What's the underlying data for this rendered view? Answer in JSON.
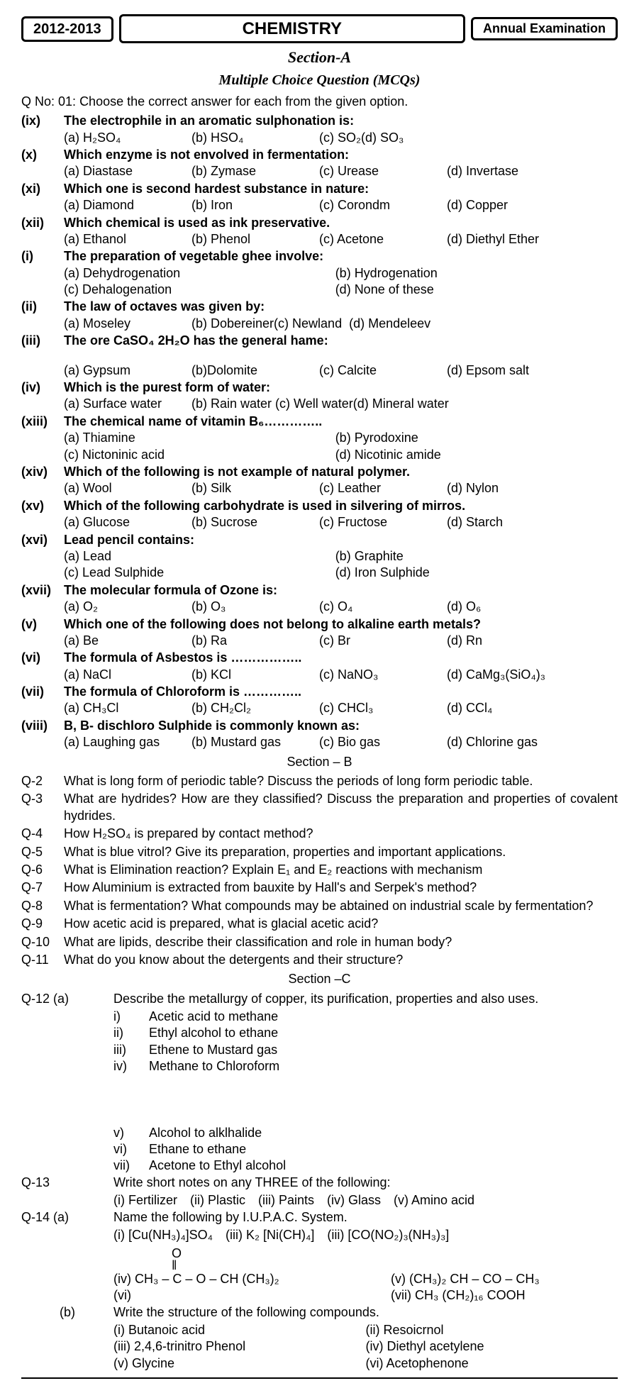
{
  "header": {
    "year": "2012-2013",
    "subject": "CHEMISTRY",
    "exam": "Annual Examination"
  },
  "sectionA": {
    "title": "Section-A",
    "subtitle": "Multiple Choice Question (MCQs)",
    "instruction_label": "Q No: 01:",
    "instruction": "Choose the correct answer for each from the given option."
  },
  "mcq": [
    {
      "num": "(ix)",
      "q": "The electrophile in an aromatic sulphonation is:",
      "opts": [
        "(a) H₂SO₄",
        "(b) HSO₄",
        "(c) SO₂(d) SO₃"
      ]
    },
    {
      "num": "(x)",
      "q": "Which enzyme is not envolved in fermentation:",
      "opts": [
        "(a) Diastase",
        "(b) Zymase",
        "(c) Urease",
        "(d) Invertase"
      ]
    },
    {
      "num": "(xi)",
      "q": "Which one is second hardest substance in nature:",
      "opts": [
        "(a) Diamond",
        "(b) Iron",
        "(c) Corondm",
        "(d) Copper"
      ]
    },
    {
      "num": "(xii)",
      "q": "Which chemical is used as ink preservative.",
      "opts": [
        "(a) Ethanol",
        "(b) Phenol",
        "(c) Acetone",
        "(d) Diethyl Ether"
      ]
    },
    {
      "num": "(i)",
      "q": "The preparation of vegetable ghee involve:",
      "opts2": [
        "(a) Dehydrogenation",
        "(b) Hydrogenation",
        "(c) Dehalogenation",
        "(d) None of these"
      ]
    },
    {
      "num": "(ii)",
      "q": "The law of octaves was given by:",
      "opts": [
        "(a) Moseley",
        "(b) Dobereiner(c) Newland",
        "(d) Mendeleev"
      ]
    },
    {
      "num": "(iii)",
      "q": "The ore CaSO₄ 2H₂O has the general hame:",
      "gap": true,
      "opts": [
        "(a) Gypsum",
        "(b)Dolomite",
        "(c) Calcite",
        "(d) Epsom salt"
      ]
    },
    {
      "num": "(iv)",
      "q": "Which is the purest form of water:",
      "opts": [
        "(a) Surface water",
        "(b) Rain water (c) Well water(d) Mineral water"
      ]
    },
    {
      "num": "(xiii)",
      "q": "The chemical name of vitamin B₆…………..",
      "opts2": [
        "(a) Thiamine",
        "(b) Pyrodoxine",
        "(c) Nictoninic acid",
        "(d) Nicotinic amide"
      ]
    },
    {
      "num": "(xiv)",
      "q": "Which of the following is not example of natural polymer.",
      "opts": [
        "(a) Wool",
        "(b) Silk",
        "(c) Leather",
        "(d) Nylon"
      ]
    },
    {
      "num": "(xv)",
      "q": "Which of the following carbohydrate is used in silvering of mirros.",
      "opts": [
        "(a) Glucose",
        "(b) Sucrose",
        "(c) Fructose",
        "(d) Starch"
      ]
    },
    {
      "num": "(xvi)",
      "q": "Lead pencil contains:",
      "opts2": [
        "(a) Lead",
        "(b) Graphite",
        "(c) Lead Sulphide",
        "(d) Iron Sulphide"
      ]
    },
    {
      "num": "(xvii)",
      "q": "The molecular formula of Ozone is:",
      "opts": [
        "(a) O₂",
        "(b) O₃",
        "(c) O₄",
        "(d) O₆"
      ]
    },
    {
      "num": "(v)",
      "q": "Which one of the following does not belong to alkaline earth metals?",
      "opts": [
        "(a) Be",
        "(b) Ra",
        "(c) Br",
        "(d) Rn"
      ]
    },
    {
      "num": "(vi)",
      "q": "The formula of Asbestos is ……………..",
      "opts": [
        "(a) NaCl",
        "(b) KCl",
        "(c) NaNO₃",
        "(d) CaMg₃(SiO₄)₃"
      ]
    },
    {
      "num": "(vii)",
      "q": "The formula of Chloroform is …………..",
      "opts": [
        "(a) CH₃Cl",
        "(b) CH₂Cl₂",
        "(c) CHCl₃",
        "(d) CCl₄"
      ]
    },
    {
      "num": "(viii)",
      "q": "B, B- dischloro Sulphide is commonly known as:",
      "opts": [
        "(a) Laughing gas",
        "(b) Mustard gas",
        "(c) Bio gas",
        "(d) Chlorine gas"
      ]
    }
  ],
  "sectionB_title": "Section – B",
  "longq": [
    {
      "num": "Q-2",
      "text": "What is long form of periodic table? Discuss the periods of long form periodic table."
    },
    {
      "num": "Q-3",
      "text": "What are hydrides? How are they classified? Discuss the preparation and properties of covalent hydrides."
    },
    {
      "num": "Q-4",
      "text": "How H₂SO₄ is prepared by contact method?"
    },
    {
      "num": "Q-5",
      "text": "What is blue vitrol? Give its preparation, properties and important applications."
    },
    {
      "num": "Q-6",
      "text": "What is Elimination reaction? Explain E₁ and E₂ reactions with mechanism"
    },
    {
      "num": "Q-7",
      "text": "How Aluminium is extracted from bauxite by Hall's and Serpek's method?"
    },
    {
      "num": "Q-8",
      "text": "What is fermentation? What compounds may be abtained on industrial scale by fermentation?"
    },
    {
      "num": "Q-9",
      "text": "How acetic acid is prepared, what is glacial acetic acid?"
    },
    {
      "num": "Q-10",
      "text": "What are lipids, describe their classification and role in human body?"
    },
    {
      "num": "Q-11",
      "text": "What do you know about the detergents and their structure?"
    }
  ],
  "sectionC_title": "Section –C",
  "q12": {
    "num": "Q-12 (a)",
    "text": "Describe the metallurgy of copper, its purification, properties and also uses.",
    "subs1": [
      {
        "r": "i)",
        "t": "Acetic acid to methane"
      },
      {
        "r": "ii)",
        "t": "Ethyl alcohol to ethane"
      },
      {
        "r": "iii)",
        "t": "Ethene to Mustard gas"
      },
      {
        "r": "iv)",
        "t": "Methane to Chloroform"
      }
    ],
    "subs2": [
      {
        "r": "v)",
        "t": "Alcohol to alklhalide"
      },
      {
        "r": "vi)",
        "t": "Ethane to ethane"
      },
      {
        "r": "vii)",
        "t": "Acetone to Ethyl alcohol"
      }
    ]
  },
  "q13": {
    "num": "Q-13",
    "text": "Write short notes on any THREE of the following:",
    "opts": [
      "(i) Fertilizer",
      "(ii) Plastic",
      "(iii) Paints",
      "(iv) Glass",
      "(v) Amino acid"
    ]
  },
  "q14": {
    "num": "Q-14 (a)",
    "text": "Name the following by I.U.P.A.C. System.",
    "row1": [
      "(i) [Cu(NH₃)₄]SO₄",
      "(iii) K₂ [Ni(CH)₄]",
      "(iii) [CO(NO₂)₃(NH₃)₃]"
    ],
    "row2a": "(iv) CH₃ – C – O – CH (CH₃)₂",
    "row2a_top": "O",
    "row2a_mid": "‖",
    "row2b": "(v) (CH₃)₂ CH – CO – CH₃",
    "row3": [
      "(vi)",
      "(vii) CH₃ (CH₂)₁₆ COOH"
    ]
  },
  "q14b": {
    "num": "(b)",
    "text": "Write the structure of the following compounds.",
    "rows": [
      [
        "(i) Butanoic acid",
        "(ii) Resoicrnol"
      ],
      [
        "(iii) 2,4,6-trinitro Phenol",
        "(iv) Diethyl acetylene"
      ],
      [
        "(v) Glycine",
        "(vi) Acetophenone"
      ]
    ]
  }
}
